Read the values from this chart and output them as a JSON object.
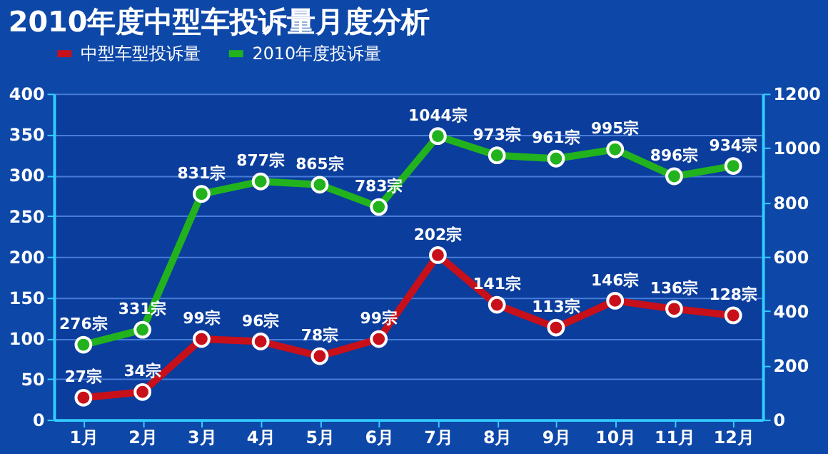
{
  "chart_data": {
    "type": "line",
    "title": "2010年度中型车投诉量月度分析",
    "categories": [
      "1月",
      "2月",
      "3月",
      "4月",
      "5月",
      "6月",
      "7月",
      "8月",
      "9月",
      "10月",
      "11月",
      "12月"
    ],
    "series": [
      {
        "name": "中型车型投诉量",
        "color": "#c8101a",
        "values": [
          27,
          34,
          99,
          96,
          78,
          99,
          202,
          141,
          113,
          146,
          136,
          128
        ],
        "value_labels": [
          "27宗",
          "34宗",
          "99宗",
          "96宗",
          "78宗",
          "99宗",
          "202宗",
          "141宗",
          "113宗",
          "146宗",
          "136宗",
          "128宗"
        ]
      },
      {
        "name": "2010年度投诉量",
        "color": "#22b21e",
        "axis": "y2",
        "values": [
          276,
          331,
          831,
          877,
          865,
          783,
          1044,
          973,
          961,
          995,
          896,
          934
        ],
        "value_labels": [
          "276宗",
          "331宗",
          "831宗",
          "877宗",
          "865宗",
          "783宗",
          "1044宗",
          "973宗",
          "961宗",
          "995宗",
          "896宗",
          "934宗"
        ]
      }
    ],
    "ylim": [
      0,
      400
    ],
    "yticks": [
      0,
      50,
      100,
      150,
      200,
      250,
      300,
      350,
      400
    ],
    "y2lim": [
      0,
      1200
    ],
    "y2ticks": [
      0,
      200,
      400,
      600,
      800,
      1000,
      1200
    ],
    "grid": "y",
    "legend": "top",
    "marker": "circle",
    "line_style": "solid"
  }
}
